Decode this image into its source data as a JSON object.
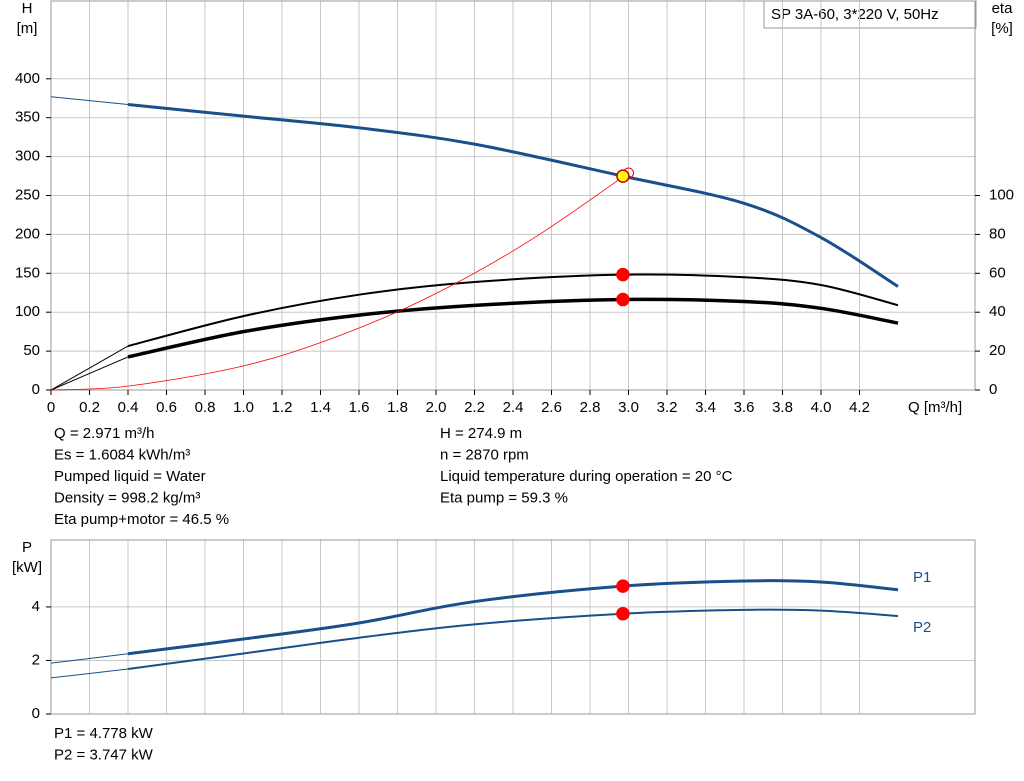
{
  "chart_data": [
    {
      "type": "line",
      "title": "SP 3A-60, 3*220 V, 50Hz",
      "x_label": "Q [m³/h]",
      "y_label": [
        "H",
        "[m]"
      ],
      "y2_label": [
        "eta",
        "[%]"
      ],
      "xlim": [
        0,
        4.8
      ],
      "xticks": [
        0,
        0.2,
        0.4,
        0.6,
        0.8,
        {
          "value": 1,
          "label": "1.0"
        },
        1.2,
        1.4,
        1.6,
        1.8,
        {
          "value": 2,
          "label": "2.0"
        },
        2.2,
        2.4,
        2.6,
        2.8,
        {
          "value": 3,
          "label": "3.0"
        },
        3.2,
        3.4,
        3.6,
        3.8,
        {
          "value": 4,
          "label": "4.0"
        },
        4.2
      ],
      "ylim": [
        0,
        500
      ],
      "yticks": [
        0,
        50,
        100,
        150,
        200,
        250,
        300,
        350,
        400
      ],
      "y2lim": [
        0,
        200
      ],
      "y2ticks": [
        0,
        20,
        40,
        60,
        80,
        100
      ],
      "grid": true,
      "series": [
        {
          "color": "#1a4f8b",
          "line_width": 3,
          "x": [
            0,
            0.4,
            1.0,
            1.6,
            2.2,
            2.971,
            3.6,
            4.0,
            4.4
          ],
          "values": [
            377,
            367,
            352,
            337,
            316,
            274.9,
            240,
            196,
            133
          ]
        },
        {
          "color": "#000000",
          "line_width": 2,
          "axis": "y2",
          "x": [
            0,
            0.4,
            1.0,
            1.6,
            2.2,
            2.971,
            3.6,
            4.0,
            4.4
          ],
          "values": [
            0,
            22.6,
            38,
            49,
            55.5,
            59.3,
            58,
            54,
            43.6
          ]
        },
        {
          "color": "#000000",
          "line_width": 3.5,
          "axis": "y2",
          "x": [
            0,
            0.4,
            1.0,
            1.6,
            2.2,
            2.971,
            3.6,
            4.0,
            4.4
          ],
          "values": [
            0,
            17,
            30,
            38.5,
            43.5,
            46.5,
            45.5,
            42,
            34.4
          ]
        },
        {
          "color": "#ff0000",
          "line_width": 0.8,
          "x": [
            0,
            0.4,
            1.0,
            1.5,
            2.0,
            2.5,
            3.0
          ],
          "values": [
            0,
            5,
            31,
            70,
            124,
            194,
            279
          ]
        }
      ],
      "points": [
        {
          "x": 3.0,
          "y": 279,
          "fill": "none",
          "stroke": "#ff0000"
        },
        {
          "x": 2.971,
          "y": 274.9,
          "fill": "#ffff00",
          "stroke": "#cc0000"
        },
        {
          "x": 2.971,
          "y": 59.3,
          "axis": "y2",
          "fill": "#ff0000",
          "stroke": "#ff0000"
        },
        {
          "x": 2.971,
          "y": 46.5,
          "axis": "y2",
          "fill": "#ff0000",
          "stroke": "#ff0000"
        }
      ],
      "info_left": [
        "Q = 2.971 m³/h",
        "Es = 1.6084 kWh/m³",
        "Pumped liquid = Water",
        "Density = 998.2 kg/m³",
        "Eta pump+motor = 46.5 %"
      ],
      "info_right": [
        "H = 274.9 m",
        "n = 2870 rpm",
        "Liquid temperature during operation = 20 °C",
        "Eta pump = 59.3 %"
      ]
    },
    {
      "type": "line",
      "y_label": [
        "P",
        "[kW]"
      ],
      "xlim": [
        0,
        4.8
      ],
      "ylim": [
        0,
        6.5
      ],
      "yticks": [
        0,
        2,
        4
      ],
      "grid": true,
      "series": [
        {
          "name": "P1",
          "color": "#1a4f8b",
          "line_width": 3,
          "x": [
            0,
            0.4,
            1.0,
            1.6,
            2.2,
            2.971,
            3.6,
            4.0,
            4.4
          ],
          "values": [
            1.9,
            2.25,
            2.8,
            3.4,
            4.2,
            4.778,
            4.97,
            4.93,
            4.64
          ]
        },
        {
          "name": "P2",
          "color": "#1a4f8b",
          "line_width": 2,
          "x": [
            0,
            0.4,
            1.0,
            1.6,
            2.2,
            2.971,
            3.6,
            4.0,
            4.4
          ],
          "values": [
            1.35,
            1.68,
            2.26,
            2.85,
            3.35,
            3.747,
            3.89,
            3.86,
            3.66
          ]
        }
      ],
      "points": [
        {
          "x": 2.971,
          "y": 4.778,
          "fill": "#ff0000",
          "stroke": "#ff0000"
        },
        {
          "x": 2.971,
          "y": 3.747,
          "fill": "#ff0000",
          "stroke": "#ff0000"
        }
      ],
      "info": [
        "P1 = 4.778 kW",
        "P2 = 3.747 kW"
      ]
    }
  ]
}
